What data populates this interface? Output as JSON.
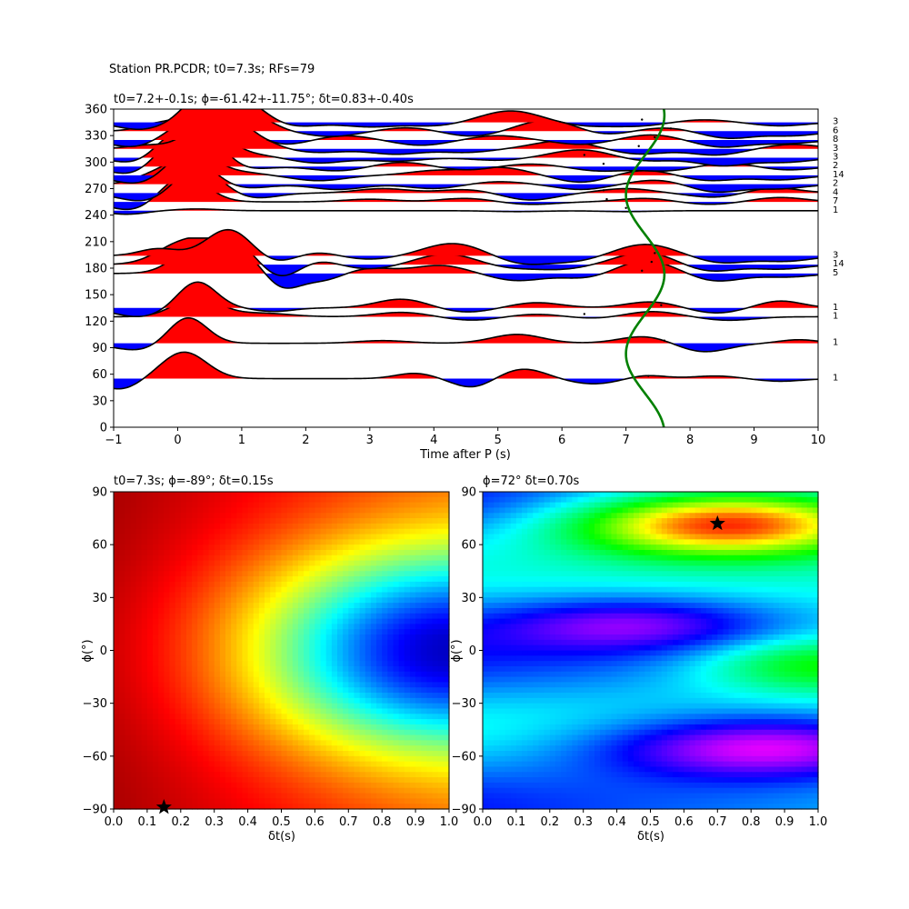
{
  "figure": {
    "suptitle": "Station PR.PCDR; t0=7.3s; RFs=79"
  },
  "colors": {
    "positive_fill": "#ff0000",
    "negative_fill": "#0000ff",
    "trace_line": "#000000",
    "curve": "#008000"
  },
  "chart_data": [
    {
      "type": "line",
      "id": "receiver-functions",
      "title": "t0=7.2+-0.1s; ϕ=-61.42+-11.75°; δt=0.83+-0.40s",
      "xlabel": "Time after P (s)",
      "ylabel": "",
      "xlim": [
        -1,
        10
      ],
      "ylim": [
        0,
        360
      ],
      "xticks": [
        -1,
        0,
        1,
        2,
        3,
        4,
        5,
        6,
        7,
        8,
        9,
        10
      ],
      "yticks": [
        0,
        30,
        60,
        90,
        120,
        150,
        180,
        210,
        240,
        270,
        300,
        330,
        360
      ],
      "grid": false,
      "traces": [
        {
          "baz": 55,
          "count": "1",
          "pulses": [
            [
              0.1,
              30,
              0.35
            ],
            [
              1.2,
              0,
              0.4
            ],
            [
              3.7,
              6,
              0.3
            ],
            [
              4.6,
              -10,
              0.3
            ],
            [
              5.4,
              11,
              0.35
            ],
            [
              6.5,
              -6,
              0.4
            ],
            [
              7.3,
              4,
              0.3
            ],
            [
              8.4,
              3,
              0.35
            ],
            [
              9.4,
              -3,
              0.35
            ],
            [
              -0.9,
              -12,
              0.3
            ]
          ],
          "dot": 7.35
        },
        {
          "baz": 95,
          "count": "1",
          "pulses": [
            [
              0.15,
              30,
              0.3
            ],
            [
              -0.6,
              -8,
              0.4
            ],
            [
              3.2,
              3,
              0.4
            ],
            [
              5.3,
              10,
              0.4
            ],
            [
              7.3,
              8,
              0.4
            ],
            [
              8.2,
              -10,
              0.4
            ],
            [
              9.7,
              4,
              0.3
            ]
          ],
          "dot": 7.6
        },
        {
          "baz": 125,
          "count": "1",
          "pulses": [
            [
              0.3,
              22,
              0.35
            ],
            [
              1.3,
              4,
              0.45
            ],
            [
              3.5,
              5,
              0.4
            ],
            [
              4.6,
              -4,
              0.4
            ],
            [
              5.6,
              3,
              0.4
            ],
            [
              6.5,
              -2,
              0.4
            ],
            [
              7.4,
              6,
              0.4
            ],
            [
              8.6,
              -4,
              0.4
            ]
          ],
          "dot": 6.35
        },
        {
          "baz": 135,
          "count": "1",
          "pulses": [
            [
              0.3,
              30,
              0.3
            ],
            [
              -0.6,
              -10,
              0.4
            ],
            [
              1.5,
              -4,
              0.3
            ],
            [
              3.5,
              10,
              0.4
            ],
            [
              4.5,
              -5,
              0.4
            ],
            [
              5.6,
              6,
              0.4
            ],
            [
              7.4,
              7,
              0.4
            ],
            [
              8.4,
              -6,
              0.4
            ],
            [
              9.4,
              8,
              0.35
            ]
          ],
          "dot": 7.55
        },
        {
          "baz": 174,
          "count": "5",
          "pulses": [
            [
              0.3,
              30,
              0.35
            ],
            [
              1.0,
              25,
              0.35
            ],
            [
              1.6,
              -20,
              0.3
            ],
            [
              2.3,
              -8,
              0.3
            ],
            [
              3.0,
              6,
              0.4
            ],
            [
              4.1,
              9,
              0.4
            ],
            [
              5.3,
              -8,
              0.4
            ],
            [
              6.4,
              -6,
              0.4
            ],
            [
              7.3,
              15,
              0.45
            ],
            [
              8.4,
              -9,
              0.4
            ],
            [
              9.5,
              -4,
              0.4
            ]
          ],
          "dot": 7.25
        },
        {
          "baz": 184,
          "count": "14",
          "pulses": [
            [
              0.1,
              25,
              0.4
            ],
            [
              0.8,
              28,
              0.35
            ],
            [
              1.6,
              -15,
              0.3
            ],
            [
              2.2,
              5,
              0.3
            ],
            [
              3.0,
              -5,
              0.4
            ],
            [
              4.2,
              12,
              0.45
            ],
            [
              5.2,
              -4,
              0.4
            ],
            [
              6.0,
              -5,
              0.4
            ],
            [
              7.3,
              14,
              0.45
            ],
            [
              8.3,
              -8,
              0.4
            ],
            [
              9.4,
              -5,
              0.4
            ]
          ],
          "dot": 7.4
        },
        {
          "baz": 194,
          "count": "3",
          "pulses": [
            [
              -0.3,
              8,
              0.3
            ],
            [
              0.8,
              30,
              0.35
            ],
            [
              1.5,
              -8,
              0.3
            ],
            [
              2.2,
              4,
              0.3
            ],
            [
              3.0,
              -4,
              0.4
            ],
            [
              4.3,
              14,
              0.45
            ],
            [
              5.4,
              -9,
              0.4
            ],
            [
              6.2,
              -6,
              0.4
            ],
            [
              7.3,
              13,
              0.45
            ],
            [
              8.5,
              -8,
              0.4
            ],
            [
              9.5,
              -6,
              0.4
            ]
          ],
          "dot": 7.45
        },
        {
          "baz": 245,
          "count": "1",
          "pulses": [
            [
              -0.8,
              -4,
              0.3
            ],
            [
              0.3,
              2,
              0.35
            ],
            [
              5.3,
              -1,
              0.4
            ],
            [
              7.0,
              -1,
              0.4
            ]
          ],
          "dot": 7.0
        },
        {
          "baz": 255,
          "count": "7",
          "pulses": [
            [
              0.1,
              30,
              0.35
            ],
            [
              -0.7,
              -10,
              0.35
            ],
            [
              3.0,
              3,
              0.4
            ],
            [
              4.5,
              4,
              0.4
            ],
            [
              5.5,
              -3,
              0.4
            ],
            [
              7.3,
              4,
              0.4
            ],
            [
              8.3,
              -3,
              0.4
            ],
            [
              9.4,
              5,
              0.4
            ]
          ],
          "dot": 6.7
        },
        {
          "baz": 265,
          "count": "4",
          "pulses": [
            [
              0.3,
              30,
              0.35
            ],
            [
              -0.5,
              -10,
              0.4
            ],
            [
              1.2,
              -6,
              0.35
            ],
            [
              3.2,
              5,
              0.4
            ],
            [
              4.5,
              4,
              0.4
            ],
            [
              5.5,
              -8,
              0.4
            ],
            [
              7.0,
              5,
              0.4
            ],
            [
              8.4,
              -5,
              0.4
            ],
            [
              9.3,
              6,
              0.4
            ]
          ],
          "dot": 6.65
        },
        {
          "baz": 275,
          "count": "2",
          "pulses": [
            [
              0.2,
              30,
              0.35
            ],
            [
              -0.4,
              8,
              0.3
            ],
            [
              1.0,
              -5,
              0.4
            ],
            [
              2.5,
              -6,
              0.4
            ],
            [
              4.0,
              -5,
              0.4
            ],
            [
              5.0,
              3,
              0.4
            ],
            [
              6.3,
              -6,
              0.4
            ],
            [
              7.5,
              5,
              0.4
            ],
            [
              8.4,
              -9,
              0.4
            ],
            [
              9.4,
              -5,
              0.4
            ]
          ],
          "dot": 6.35
        },
        {
          "baz": 285,
          "count": "14",
          "pulses": [
            [
              0.2,
              30,
              0.35
            ],
            [
              -0.6,
              -10,
              0.4
            ],
            [
              1.0,
              3,
              0.35
            ],
            [
              2.2,
              -6,
              0.4
            ],
            [
              4.0,
              5,
              0.4
            ],
            [
              5.0,
              9,
              0.45
            ],
            [
              6.3,
              -8,
              0.4
            ],
            [
              7.3,
              6,
              0.4
            ],
            [
              8.3,
              -6,
              0.4
            ],
            [
              9.4,
              -5,
              0.4
            ]
          ],
          "dot": 7.1
        },
        {
          "baz": 295,
          "count": "2",
          "pulses": [
            [
              0.0,
              30,
              0.35
            ],
            [
              0.5,
              25,
              0.3
            ],
            [
              -0.7,
              -10,
              0.35
            ],
            [
              1.0,
              -4,
              0.35
            ],
            [
              2.5,
              -5,
              0.4
            ],
            [
              3.5,
              5,
              0.4
            ],
            [
              4.5,
              -4,
              0.4
            ],
            [
              5.5,
              3,
              0.4
            ],
            [
              6.6,
              -5,
              0.4
            ],
            [
              7.6,
              -5,
              0.4
            ],
            [
              8.6,
              4,
              0.4
            ],
            [
              9.5,
              -4,
              0.4
            ]
          ],
          "dot": 6.65
        },
        {
          "baz": 305,
          "count": "3",
          "pulses": [
            [
              0.0,
              30,
              0.35
            ],
            [
              0.6,
              20,
              0.3
            ],
            [
              -0.6,
              -8,
              0.35
            ],
            [
              1.2,
              3,
              0.35
            ],
            [
              2.2,
              -6,
              0.4
            ],
            [
              3.4,
              -4,
              0.4
            ],
            [
              5.0,
              -3,
              0.4
            ],
            [
              6.3,
              9,
              0.45
            ],
            [
              7.3,
              -4,
              0.4
            ],
            [
              8.5,
              -9,
              0.4
            ],
            [
              9.5,
              -5,
              0.4
            ]
          ],
          "dot": 6.35
        },
        {
          "baz": 315,
          "count": "3",
          "pulses": [
            [
              -0.5,
              4,
              0.3
            ],
            [
              0.5,
              30,
              0.35
            ],
            [
              1.2,
              12,
              0.3
            ],
            [
              2.2,
              -4,
              0.4
            ],
            [
              3.4,
              -6,
              0.4
            ],
            [
              4.5,
              -4,
              0.4
            ],
            [
              6.0,
              9,
              0.45
            ],
            [
              7.2,
              -6,
              0.4
            ],
            [
              8.4,
              -7,
              0.4
            ],
            [
              9.6,
              5,
              0.4
            ]
          ],
          "dot": 7.2
        },
        {
          "baz": 325,
          "count": "8",
          "pulses": [
            [
              0.2,
              20,
              0.35
            ],
            [
              0.8,
              25,
              0.35
            ],
            [
              -0.7,
              -8,
              0.35
            ],
            [
              1.6,
              -6,
              0.4
            ],
            [
              2.6,
              5,
              0.4
            ],
            [
              3.8,
              -6,
              0.4
            ],
            [
              5.0,
              5,
              0.4
            ],
            [
              6.3,
              -5,
              0.4
            ],
            [
              7.4,
              6,
              0.4
            ],
            [
              8.5,
              -8,
              0.4
            ],
            [
              9.5,
              -4,
              0.4
            ]
          ],
          "dot": 7.45
        },
        {
          "baz": 335,
          "count": "6",
          "pulses": [
            [
              -0.3,
              8,
              0.3
            ],
            [
              0.5,
              30,
              0.35
            ],
            [
              1.2,
              15,
              0.3
            ],
            [
              2.4,
              -6,
              0.4
            ],
            [
              3.6,
              4,
              0.4
            ],
            [
              4.6,
              -6,
              0.4
            ],
            [
              5.8,
              13,
              0.45
            ],
            [
              6.6,
              -5,
              0.4
            ],
            [
              7.6,
              4,
              0.4
            ],
            [
              8.6,
              -8,
              0.4
            ],
            [
              9.6,
              -5,
              0.4
            ]
          ],
          "dot": 7.7
        },
        {
          "baz": 345,
          "count": "3",
          "pulses": [
            [
              -0.6,
              -8,
              0.35
            ],
            [
              0.4,
              30,
              0.3
            ],
            [
              1.0,
              25,
              0.35
            ],
            [
              1.8,
              -5,
              0.4
            ],
            [
              3.0,
              -5,
              0.4
            ],
            [
              4.0,
              -4,
              0.4
            ],
            [
              5.2,
              13,
              0.45
            ],
            [
              6.4,
              -4,
              0.4
            ],
            [
              7.2,
              -4,
              0.4
            ],
            [
              8.2,
              3,
              0.4
            ],
            [
              9.4,
              -4,
              0.4
            ]
          ],
          "dot": 7.25
        }
      ],
      "trace_amplitude_deg_per_unit": 1.0,
      "trace_clip_deg": 30,
      "curve": {
        "t0": 7.3,
        "amplitude": 0.3,
        "period_deg": 180,
        "phase_deg": 128,
        "ylim": [
          0,
          360
        ]
      }
    },
    {
      "type": "heatmap",
      "id": "rc-grid",
      "title": "t0=7.3s; ϕ=-89°; δt=0.15s",
      "xlabel": "δt(s)",
      "ylabel": "ϕ(°)",
      "xlim": [
        0,
        1
      ],
      "ylim": [
        -90,
        90
      ],
      "xticks": [
        0.0,
        0.1,
        0.2,
        0.3,
        0.4,
        0.5,
        0.6,
        0.7,
        0.8,
        0.9,
        1.0
      ],
      "yticks": [
        -90,
        -60,
        -30,
        0,
        30,
        60,
        90
      ],
      "colormap": "jet",
      "best": {
        "dt": 0.15,
        "phi": -89
      }
    },
    {
      "type": "heatmap",
      "id": "sc-grid",
      "title": "ϕ=72° δt=0.70s",
      "xlabel": "δt(s)",
      "ylabel": "ϕ(°)",
      "xlim": [
        0,
        1
      ],
      "ylim": [
        -90,
        90
      ],
      "xticks": [
        0.0,
        0.1,
        0.2,
        0.3,
        0.4,
        0.5,
        0.6,
        0.7,
        0.8,
        0.9,
        1.0
      ],
      "yticks": [
        -90,
        -60,
        -30,
        0,
        30,
        60,
        90
      ],
      "colormap": "hsv",
      "best": {
        "dt": 0.7,
        "phi": 72
      }
    }
  ]
}
